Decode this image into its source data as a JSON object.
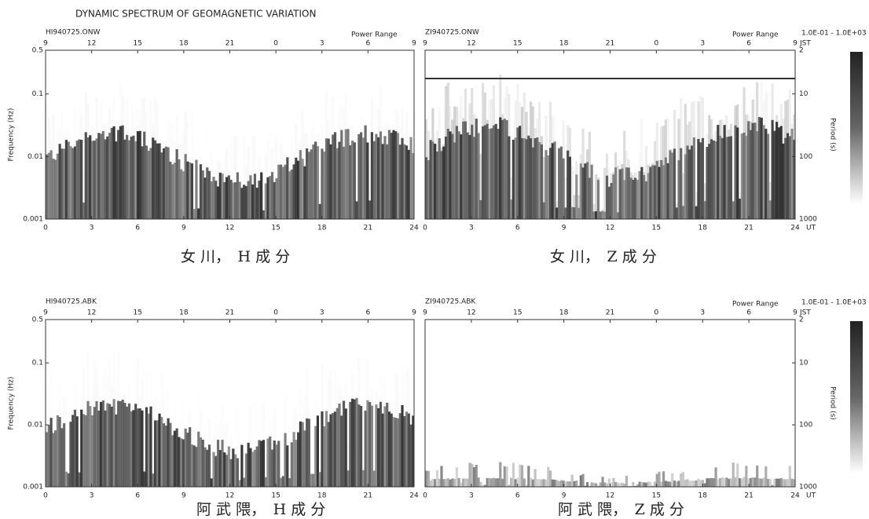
{
  "title": "DYNAMIC SPECTRUM OF GEOMAGNETIC VARIATION",
  "panels": [
    {
      "label": "HI940725.ONW",
      "power_range": "Power Range",
      "jst_ticks": [
        9,
        12,
        15,
        18,
        21,
        0,
        3,
        6,
        9
      ],
      "ut_ticks": [
        0,
        3,
        6,
        9,
        12,
        15,
        18,
        21,
        24
      ],
      "freq_ticks": [
        0.5,
        0.1,
        0.01,
        0.001
      ],
      "y_label": "Frequency (Hz)",
      "caption": "女 川，　H 成 分"
    },
    {
      "label": "ZI940725.ONW",
      "power_range": "Power Range",
      "range": "1.0E-01 - 1.0E+03",
      "jst_ticks": [
        9,
        12,
        15,
        18,
        21,
        0,
        3,
        6,
        9
      ],
      "jst_unit": "JST",
      "ut_ticks": [
        0,
        3,
        6,
        9,
        12,
        15,
        18,
        21,
        24
      ],
      "ut_unit": "UT",
      "period_ticks": [
        2,
        10,
        100,
        1000
      ],
      "y_label": "Period (s)",
      "caption": "女 川，　Z 成 分"
    },
    {
      "label": "HI940725.ABK",
      "jst_ticks": [
        9,
        12,
        15,
        18,
        21,
        0,
        3,
        6,
        9
      ],
      "ut_ticks": [
        0,
        3,
        6,
        9,
        12,
        15,
        18,
        21,
        24
      ],
      "freq_ticks": [
        0.5,
        0.1,
        0.01,
        0.001
      ],
      "y_label": "Frequency (Hz)",
      "caption": "阿 武 隈，　H 成 分"
    },
    {
      "label": "ZI940725.ABK",
      "power_range": "Power Range",
      "range": "1.0E-01 - 1.0E+03",
      "jst_ticks": [
        9,
        12,
        15,
        18,
        21,
        0,
        3,
        6,
        9
      ],
      "jst_unit": "JST",
      "ut_ticks": [
        0,
        3,
        6,
        9,
        12,
        15,
        18,
        21,
        24
      ],
      "ut_unit": "UT",
      "period_ticks": [
        2,
        10,
        100,
        1000
      ],
      "y_label": "Period (s)",
      "caption": "阿 武 隈，　Z 成 分"
    }
  ]
}
